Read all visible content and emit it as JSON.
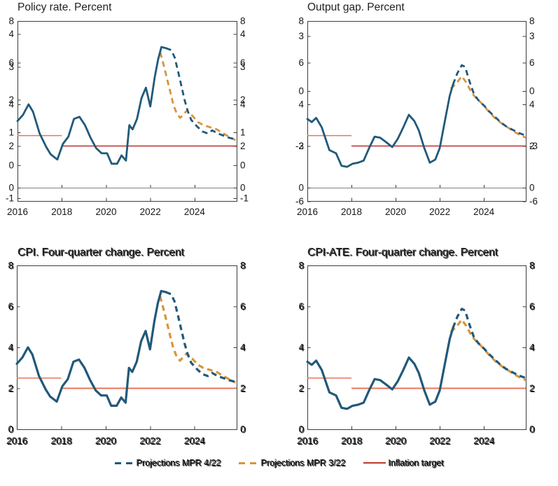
{
  "figure": {
    "background": "#ffffff",
    "description": "Four-panel line chart figure with projections"
  },
  "colors": {
    "history_and_mpr422": "#21597a",
    "mpr322": "#d8943d",
    "target_pre2018": "#e8755c",
    "target_post2018": "#be2f28",
    "target_post2018_bottom": "#e8755c",
    "axis": "#3c3c3c",
    "zero_line": "#828282",
    "text": "#161616"
  },
  "legend": {
    "items": [
      {
        "id": "mpr422",
        "label": "Projections MPR 4/22",
        "color": "#21597a",
        "style": "dashed"
      },
      {
        "id": "mpr322",
        "label": "Projections MPR 3/22",
        "color": "#d8943d",
        "style": "dashed"
      },
      {
        "id": "target",
        "label": "Inflation target",
        "color": "#c0392b",
        "style": "solid"
      }
    ]
  },
  "chart_data": {
    "type": "line",
    "x_domain": [
      2016,
      2025.9
    ],
    "x_tick_labels": [
      "2016",
      "2018",
      "2020",
      "2022",
      "2024"
    ],
    "x_tick_values": [
      2016,
      2018,
      2020,
      2022,
      2024
    ],
    "inflation_target_segments": [
      {
        "from": 2016,
        "to": 2018,
        "value": 2.5
      },
      {
        "from": 2018,
        "to": 2025.9,
        "value": 2.0
      }
    ],
    "charts": [
      {
        "id": "policy_rate",
        "title": "Policy rate. Percent",
        "series_ref": "cpi",
        "y_ticks_primary": [
          8,
          6,
          4,
          2,
          0
        ],
        "y_ticks_ghost": [
          4,
          3,
          2,
          1,
          0,
          -1
        ],
        "doubled_text": false,
        "has_inner_zero_line": true
      },
      {
        "id": "output_gap",
        "title": "Output gap. Percent",
        "series_ref": "cpi_ate",
        "y_ticks_primary": [
          8,
          6,
          4,
          2,
          0
        ],
        "y_ticks_ghost": [
          3,
          0,
          -3,
          -6
        ],
        "doubled_text": false,
        "has_inner_zero_line": true
      },
      {
        "id": "cpi",
        "title": "CPI. Four-quarter change. Percent",
        "series_ref": "cpi",
        "y_ticks_primary": [
          8,
          6,
          4,
          2,
          0
        ],
        "y_ticks_ghost": null,
        "doubled_text": true,
        "has_inner_zero_line": false
      },
      {
        "id": "cpi_ate",
        "title": "CPI-ATE. Four-quarter change. Percent",
        "series_ref": "cpi_ate",
        "y_ticks_primary": [
          8,
          6,
          4,
          2,
          0
        ],
        "y_ticks_ghost": null,
        "doubled_text": true,
        "has_inner_zero_line": false
      }
    ],
    "series": {
      "cpi": {
        "history": [
          [
            2016.0,
            3.2
          ],
          [
            2016.25,
            3.5
          ],
          [
            2016.5,
            4.0
          ],
          [
            2016.7,
            3.65
          ],
          [
            2017.0,
            2.6
          ],
          [
            2017.3,
            1.95
          ],
          [
            2017.5,
            1.6
          ],
          [
            2017.8,
            1.35
          ],
          [
            2018.05,
            2.1
          ],
          [
            2018.3,
            2.45
          ],
          [
            2018.55,
            3.3
          ],
          [
            2018.8,
            3.4
          ],
          [
            2019.05,
            3.0
          ],
          [
            2019.3,
            2.4
          ],
          [
            2019.55,
            1.9
          ],
          [
            2019.8,
            1.65
          ],
          [
            2020.05,
            1.65
          ],
          [
            2020.25,
            1.15
          ],
          [
            2020.5,
            1.15
          ],
          [
            2020.7,
            1.55
          ],
          [
            2020.9,
            1.3
          ],
          [
            2021.05,
            3.0
          ],
          [
            2021.2,
            2.8
          ],
          [
            2021.4,
            3.3
          ],
          [
            2021.6,
            4.3
          ],
          [
            2021.8,
            4.8
          ],
          [
            2022.0,
            3.9
          ],
          [
            2022.2,
            5.3
          ],
          [
            2022.35,
            6.15
          ],
          [
            2022.5,
            6.75
          ],
          [
            2022.7,
            6.7
          ]
        ],
        "projection_mpr_4_22": [
          [
            2022.7,
            6.7
          ],
          [
            2022.95,
            6.6
          ],
          [
            2023.1,
            6.25
          ],
          [
            2023.25,
            5.6
          ],
          [
            2023.4,
            4.9
          ],
          [
            2023.55,
            4.2
          ],
          [
            2023.7,
            3.65
          ],
          [
            2023.85,
            3.25
          ],
          [
            2024.1,
            2.95
          ],
          [
            2024.35,
            2.7
          ],
          [
            2024.6,
            2.6
          ],
          [
            2024.8,
            2.75
          ],
          [
            2025.05,
            2.6
          ],
          [
            2025.3,
            2.5
          ],
          [
            2025.55,
            2.4
          ],
          [
            2025.9,
            2.3
          ]
        ],
        "projection_mpr_3_22": [
          [
            2022.45,
            6.5
          ],
          [
            2022.6,
            5.9
          ],
          [
            2022.75,
            5.25
          ],
          [
            2022.9,
            4.6
          ],
          [
            2023.05,
            3.95
          ],
          [
            2023.2,
            3.55
          ],
          [
            2023.35,
            3.35
          ],
          [
            2023.65,
            3.7
          ],
          [
            2023.9,
            3.45
          ],
          [
            2024.15,
            3.15
          ],
          [
            2024.4,
            3.0
          ],
          [
            2024.7,
            2.9
          ],
          [
            2025.0,
            2.8
          ],
          [
            2025.3,
            2.6
          ],
          [
            2025.6,
            2.42
          ],
          [
            2025.85,
            2.28
          ]
        ]
      },
      "cpi_ate": {
        "history": [
          [
            2016.0,
            3.3
          ],
          [
            2016.2,
            3.15
          ],
          [
            2016.4,
            3.35
          ],
          [
            2016.65,
            2.9
          ],
          [
            2017.0,
            1.8
          ],
          [
            2017.3,
            1.65
          ],
          [
            2017.55,
            1.05
          ],
          [
            2017.8,
            1.0
          ],
          [
            2018.05,
            1.15
          ],
          [
            2018.3,
            1.2
          ],
          [
            2018.55,
            1.3
          ],
          [
            2018.8,
            1.9
          ],
          [
            2019.05,
            2.45
          ],
          [
            2019.3,
            2.4
          ],
          [
            2019.55,
            2.2
          ],
          [
            2019.85,
            1.95
          ],
          [
            2020.1,
            2.35
          ],
          [
            2020.35,
            2.9
          ],
          [
            2020.6,
            3.5
          ],
          [
            2020.85,
            3.2
          ],
          [
            2021.05,
            2.75
          ],
          [
            2021.3,
            1.9
          ],
          [
            2021.55,
            1.2
          ],
          [
            2021.8,
            1.35
          ],
          [
            2022.0,
            1.9
          ],
          [
            2022.25,
            3.3
          ],
          [
            2022.45,
            4.4
          ],
          [
            2022.6,
            4.95
          ]
        ],
        "projection_mpr_4_22": [
          [
            2022.6,
            4.95
          ],
          [
            2022.8,
            5.5
          ],
          [
            2023.0,
            5.88
          ],
          [
            2023.15,
            5.8
          ],
          [
            2023.35,
            5.1
          ],
          [
            2023.55,
            4.5
          ],
          [
            2023.75,
            4.2
          ],
          [
            2024.0,
            3.95
          ],
          [
            2024.25,
            3.65
          ],
          [
            2024.5,
            3.4
          ],
          [
            2024.75,
            3.15
          ],
          [
            2025.0,
            2.95
          ],
          [
            2025.3,
            2.78
          ],
          [
            2025.6,
            2.62
          ],
          [
            2025.9,
            2.5
          ]
        ],
        "projection_mpr_3_22": [
          [
            2022.5,
            4.75
          ],
          [
            2022.75,
            5.0
          ],
          [
            2023.0,
            5.35
          ],
          [
            2023.2,
            5.05
          ],
          [
            2023.45,
            4.55
          ],
          [
            2023.65,
            4.3
          ],
          [
            2023.85,
            4.1
          ],
          [
            2024.1,
            3.8
          ],
          [
            2024.35,
            3.5
          ],
          [
            2024.6,
            3.25
          ],
          [
            2024.85,
            3.05
          ],
          [
            2025.1,
            2.88
          ],
          [
            2025.35,
            2.7
          ],
          [
            2025.6,
            2.55
          ],
          [
            2025.9,
            2.4
          ]
        ]
      }
    }
  }
}
